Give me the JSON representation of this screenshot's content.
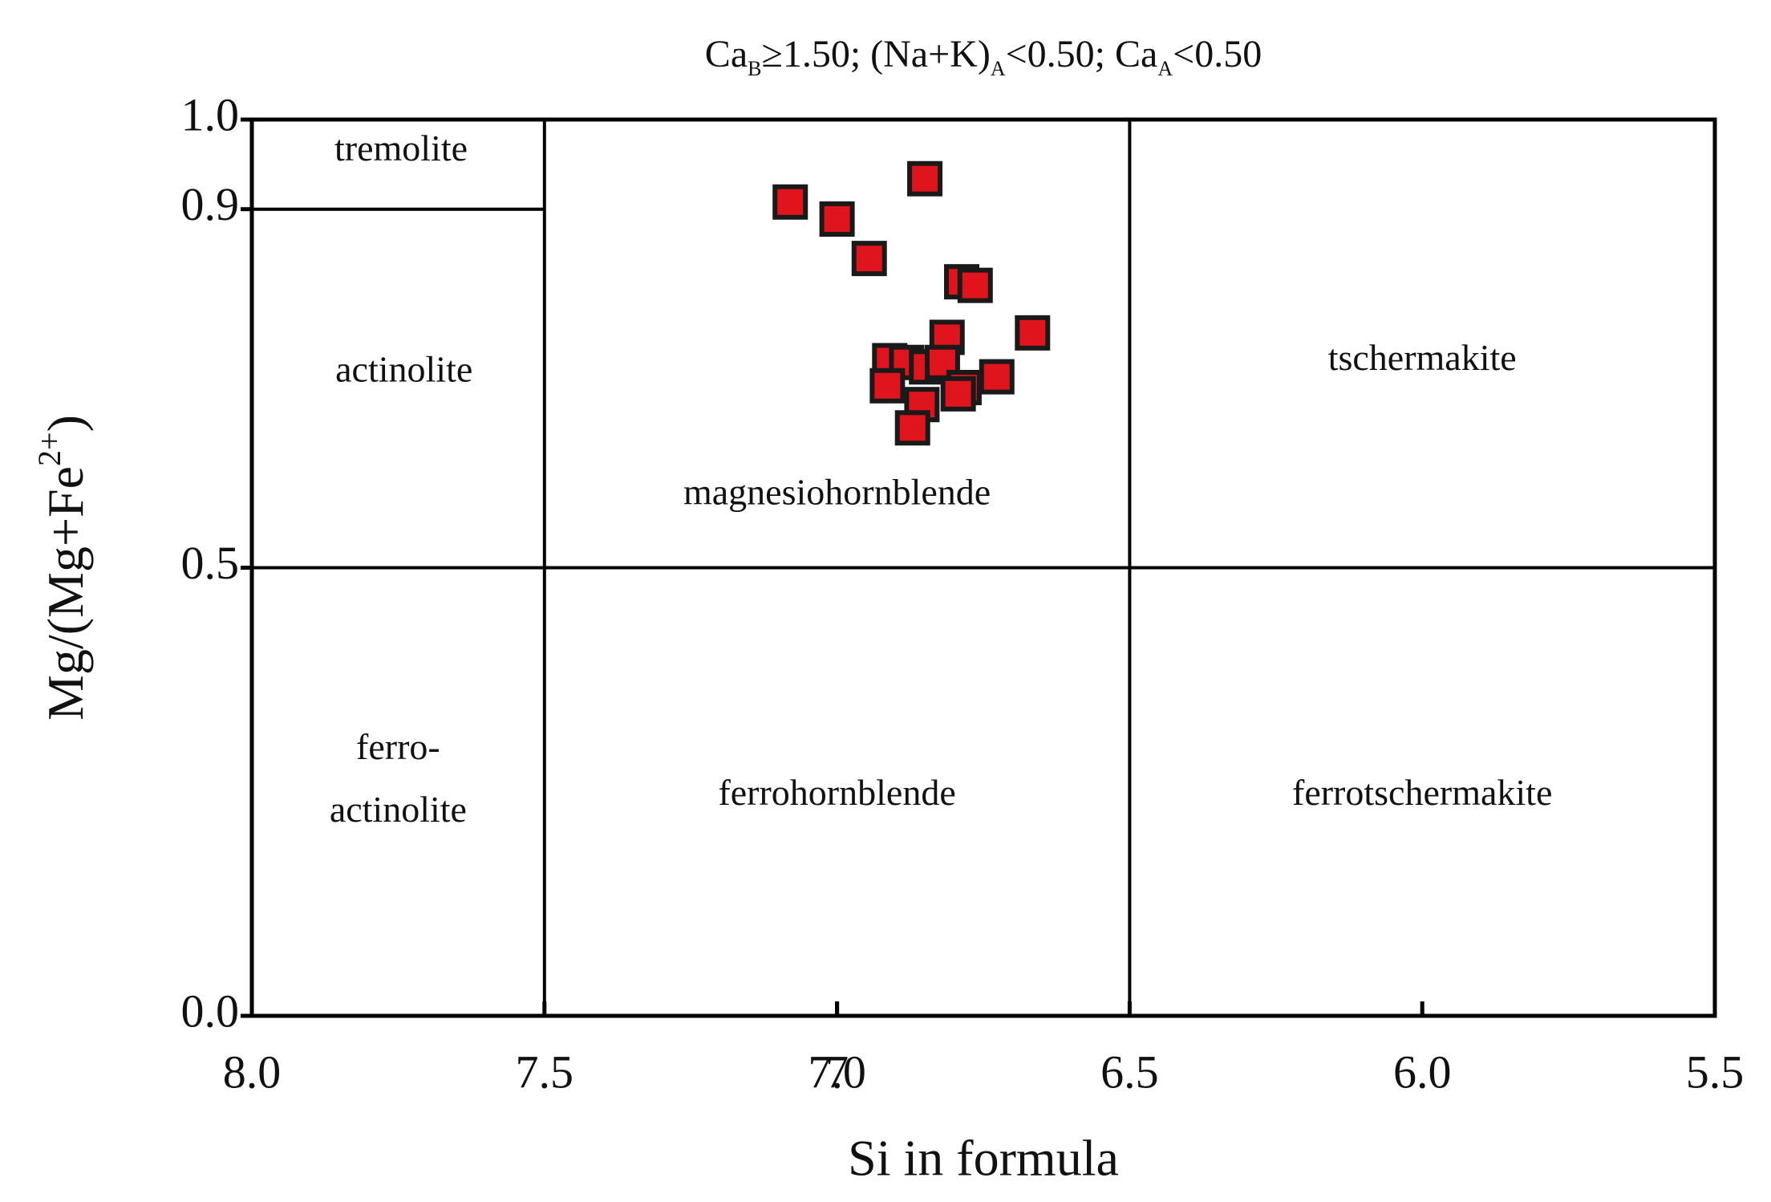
{
  "chart_data": {
    "type": "scatter",
    "title_parts": [
      {
        "text": "Ca"
      },
      {
        "text": "B",
        "sub": true
      },
      {
        "text": "≥1.50; (Na+K)"
      },
      {
        "text": "A",
        "sub": true
      },
      {
        "text": "<0.50; Ca"
      },
      {
        "text": "A",
        "sub": true
      },
      {
        "text": "<0.50"
      }
    ],
    "x_label": "Si in formula",
    "y_label_parts": [
      {
        "text": "Mg/(Mg+Fe"
      },
      {
        "text": "2+",
        "sup": true
      },
      {
        "text": ")"
      }
    ],
    "xlim": [
      8.0,
      5.5
    ],
    "ylim": [
      0.0,
      1.0
    ],
    "xticks": [
      {
        "value": 8,
        "label": "8.0"
      },
      7.5,
      7,
      {
        "value": 7,
        "label": "7.0"
      },
      6.5,
      {
        "value": 6,
        "label": "6.0"
      },
      5.5
    ],
    "yticks": [
      {
        "value": 0,
        "label": "0.0"
      },
      0.5,
      0.9,
      {
        "value": 1,
        "label": "1.0"
      }
    ],
    "color": "#e0141c",
    "x": [
      7.08,
      7.0,
      6.945,
      6.85,
      6.787,
      6.764,
      6.666,
      6.812,
      6.91,
      6.881,
      6.847,
      6.82,
      6.914,
      6.783,
      6.793,
      6.727,
      6.855,
      6.871
    ],
    "values": [
      0.908,
      0.889,
      0.845,
      0.934,
      0.819,
      0.815,
      0.762,
      0.757,
      0.731,
      0.729,
      0.724,
      0.729,
      0.703,
      0.701,
      0.694,
      0.713,
      0.682,
      0.656
    ],
    "boundaries": [
      {
        "x": [
          7.5,
          7.5
        ],
        "y": [
          0,
          1
        ]
      },
      {
        "x": [
          6.5,
          6.5
        ],
        "y": [
          0,
          1
        ]
      },
      {
        "x": [
          8,
          5.5
        ],
        "y": [
          0.5,
          0.5
        ]
      },
      {
        "x": [
          8,
          7.5
        ],
        "y": [
          0.9,
          0.9
        ]
      }
    ],
    "regions": [
      {
        "lines": [
          "tremolite"
        ],
        "x": 7.745,
        "y": 0.964
      },
      {
        "lines": [
          "actinolite"
        ],
        "x": 7.74,
        "y": 0.717
      },
      {
        "lines": [
          "ferro-",
          "actinolite"
        ],
        "x": 7.75,
        "y": 0.261
      },
      {
        "lines": [
          "magnesiohornblende"
        ],
        "x": 7.0,
        "y": 0.58
      },
      {
        "lines": [
          "ferrohornblende"
        ],
        "x": 7.0,
        "y": 0.245
      },
      {
        "lines": [
          "tschermakite"
        ],
        "x": 6.0,
        "y": 0.73
      },
      {
        "lines": [
          "ferrotschermakite"
        ],
        "x": 6.0,
        "y": 0.245
      }
    ]
  }
}
